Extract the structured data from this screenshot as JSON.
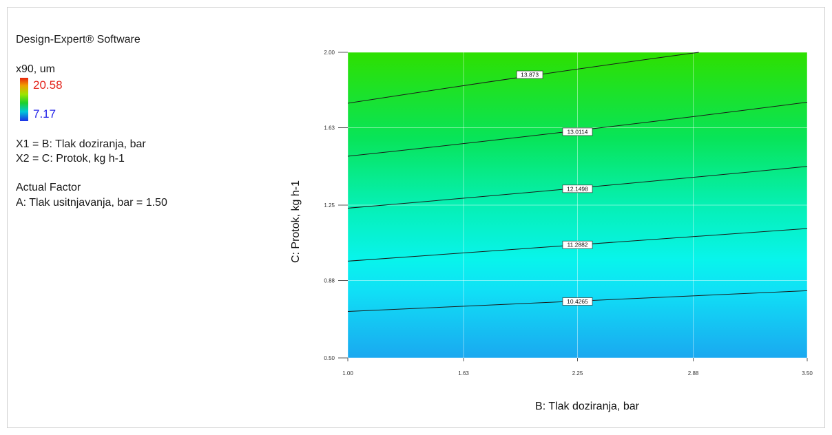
{
  "software_title": "Design-Expert® Software",
  "response": {
    "name": "x90, um",
    "max_label": "20.58",
    "min_label": "7.17",
    "max_color": "#e3241c",
    "min_color": "#2424e8"
  },
  "factors": {
    "x1": "X1 = B: Tlak doziranja, bar",
    "x2": "X2 = C: Protok, kg h-1"
  },
  "actual_factor": {
    "heading": "Actual Factor",
    "value": "A: Tlak usitnjavanja, bar = 1.50"
  },
  "chart_data": {
    "type": "contour",
    "xlabel": "B: Tlak doziranja, bar",
    "ylabel": "C: Protok, kg h-1",
    "xlim": [
      1.0,
      3.5
    ],
    "ylim": [
      0.5,
      2.0
    ],
    "x_ticks": [
      1.0,
      1.63,
      2.25,
      2.88,
      3.5
    ],
    "x_tick_labels": [
      "1.00",
      "1.63",
      "2.25",
      "2.88",
      "3.50"
    ],
    "y_ticks": [
      0.5,
      0.88,
      1.25,
      1.63,
      2.0
    ],
    "y_tick_labels": [
      "0.50",
      "0.88",
      "1.25",
      "1.63",
      "2.00"
    ],
    "grid": true,
    "color_range": [
      7.17,
      20.58
    ],
    "contours": [
      {
        "label": "10.4265",
        "points": [
          [
            1.0,
            0.728
          ],
          [
            2.25,
            0.777
          ],
          [
            3.5,
            0.83
          ]
        ],
        "label_at": [
          2.25,
          0.777
        ]
      },
      {
        "label": "11.2882",
        "points": [
          [
            1.0,
            0.975
          ],
          [
            2.25,
            1.055
          ],
          [
            3.5,
            1.135
          ]
        ],
        "label_at": [
          2.25,
          1.055
        ]
      },
      {
        "label": "12.1498",
        "points": [
          [
            1.0,
            1.235
          ],
          [
            2.25,
            1.33
          ],
          [
            3.5,
            1.44
          ]
        ],
        "label_at": [
          2.25,
          1.33
        ]
      },
      {
        "label": "13.0114",
        "points": [
          [
            1.0,
            1.49
          ],
          [
            2.25,
            1.61
          ],
          [
            3.5,
            1.755
          ]
        ],
        "label_at": [
          2.25,
          1.61
        ]
      },
      {
        "label": "13.873",
        "points": [
          [
            1.0,
            1.75
          ],
          [
            2.0,
            1.89
          ],
          [
            2.91,
            2.0
          ]
        ],
        "label_at": [
          1.99,
          1.89
        ]
      }
    ]
  }
}
